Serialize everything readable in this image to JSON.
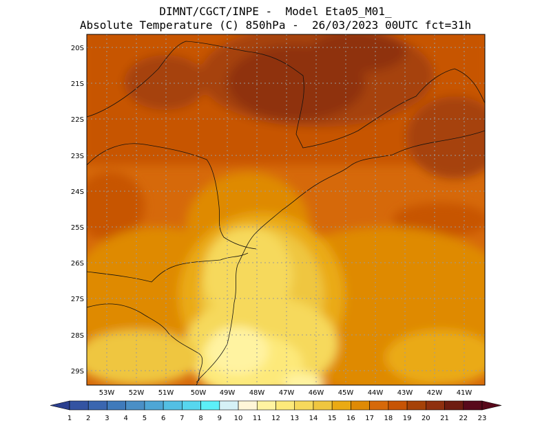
{
  "header": {
    "line1": "DIMNT/CGCT/INPE -  Model Eta05_M01_",
    "line2": "Absolute Temperature (C) 850hPa -  26/03/2023 00UTC fct=31h"
  },
  "map": {
    "lat_labels": [
      "20S",
      "21S",
      "22S",
      "23S",
      "24S",
      "25S",
      "26S",
      "27S",
      "28S",
      "29S"
    ],
    "lon_labels": [
      "53W",
      "52W",
      "51W",
      "50W",
      "49W",
      "48W",
      "47W",
      "46W",
      "45W",
      "44W",
      "43W",
      "42W",
      "41W"
    ]
  },
  "colorbar": {
    "labels": [
      "1",
      "2",
      "3",
      "4",
      "5",
      "6",
      "7",
      "8",
      "9",
      "10",
      "11",
      "12",
      "13",
      "14",
      "15",
      "16",
      "17",
      "18",
      "19",
      "20",
      "21",
      "22",
      "23"
    ],
    "colors": [
      "#2b3f8f",
      "#3353a2",
      "#3a66b0",
      "#3f7abb",
      "#4a8fc6",
      "#4ea6d5",
      "#53bfe3",
      "#57d6ee",
      "#5cf0f8",
      "#d5f1f6",
      "#fff6d8",
      "#fff3a1",
      "#fde97a",
      "#f6d95c",
      "#efc63f",
      "#eaaa13",
      "#df8a05",
      "#d6690a",
      "#c75405",
      "#a64208",
      "#8f300f",
      "#6e1c10",
      "#58091b"
    ]
  }
}
